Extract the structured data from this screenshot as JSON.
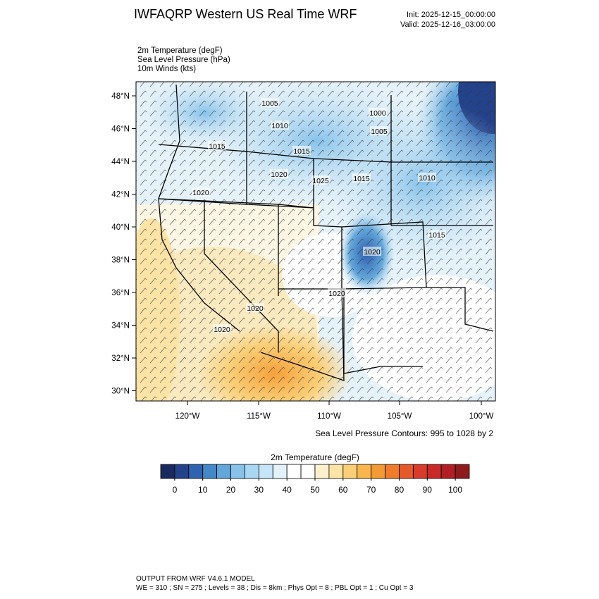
{
  "header": {
    "title": "IWFAQRP Western US Real Time WRF",
    "init": "Init: 2025-12-15_00:00:00",
    "valid": "Valid: 2025-12-16_03:00:00"
  },
  "fields": [
    "2m Temperature   (degF)",
    "Sea Level Pressure   (hPa)",
    "10m Winds   (kts)"
  ],
  "map": {
    "lat_labels": [
      "48°N",
      "46°N",
      "44°N",
      "42°N",
      "40°N",
      "38°N",
      "36°N",
      "34°N",
      "32°N",
      "30°N"
    ],
    "lon_labels": [
      "120°W",
      "115°W",
      "110°W",
      "105°W",
      "100°W"
    ],
    "contour_labels": [
      "1005",
      "1010",
      "1015",
      "1015",
      "1020",
      "1025",
      "1015",
      "1000",
      "1005",
      "1010",
      "1020",
      "1015",
      "1020",
      "1020",
      "1020",
      "1020"
    ],
    "contour_note": "Sea Level Pressure Contours: 995 to 1028 by 2"
  },
  "colorbar": {
    "title": "2m Temperature  (degF)",
    "lim": [
      -5,
      105
    ],
    "ticks": [
      0,
      10,
      20,
      30,
      40,
      50,
      60,
      70,
      80,
      90,
      100
    ],
    "colors": [
      "#1a2a5e",
      "#23428a",
      "#2e63b0",
      "#4488c8",
      "#64a6da",
      "#88c2ea",
      "#a9d6f2",
      "#c6e5f7",
      "#e2f1fa",
      "#ffffff",
      "#ffffff",
      "#fdf0cf",
      "#fde3a5",
      "#fbcf78",
      "#f9b64e",
      "#f49a35",
      "#ee7c2c",
      "#e55a2b",
      "#d93c2a",
      "#c92a28",
      "#b11f24",
      "#8f1a1c"
    ]
  },
  "footer": {
    "line1": "OUTPUT FROM WRF V4.6.1 MODEL",
    "line2": "WE = 310 ; SN = 275 ; Levels = 38 ; Dis = 8km ; Phys Opt = 8 ; PBL Opt = 1 ; Cu Opt = 3"
  }
}
